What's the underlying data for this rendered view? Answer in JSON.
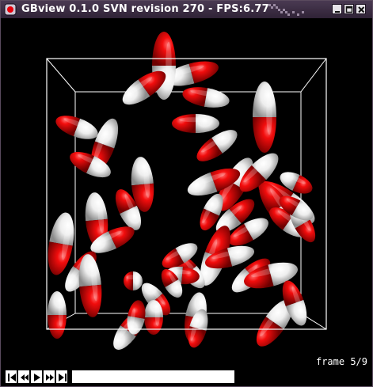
{
  "window": {
    "title": "GBview 0.1.0 SVN revision 270 - FPS:6.77",
    "icon": "gbview-app-icon",
    "buttons": [
      "minimize-icon",
      "maximize-icon",
      "close-icon"
    ]
  },
  "viewport": {
    "frame_label": "frame 5/9",
    "colors": {
      "red": "#e8000a",
      "white": "#f2f2f2",
      "box": "#ffffff",
      "background": "#000000"
    }
  },
  "playback": {
    "buttons": [
      "skip-start-icon",
      "step-back-icon",
      "play-icon",
      "step-forward-icon",
      "skip-end-icon"
    ],
    "current_frame": 5,
    "total_frames": 9
  }
}
